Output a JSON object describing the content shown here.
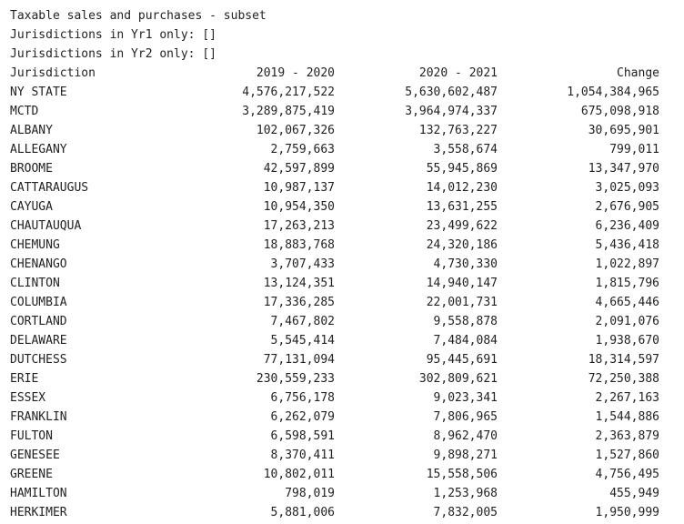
{
  "output": {
    "title": "Taxable sales and purchases - subset",
    "yr1_only": "Jurisdictions in Yr1 only: []",
    "yr2_only": "Jurisdictions in Yr2 only: []"
  },
  "table": {
    "columns": [
      "Jurisdiction",
      "2019 - 2020",
      "2020 - 2021",
      "Change"
    ],
    "rows": [
      [
        "NY STATE",
        "4,576,217,522",
        "5,630,602,487",
        "1,054,384,965"
      ],
      [
        "MCTD",
        "3,289,875,419",
        "3,964,974,337",
        "675,098,918"
      ],
      [
        "ALBANY",
        "102,067,326",
        "132,763,227",
        "30,695,901"
      ],
      [
        "ALLEGANY",
        "2,759,663",
        "3,558,674",
        "799,011"
      ],
      [
        "BROOME",
        "42,597,899",
        "55,945,869",
        "13,347,970"
      ],
      [
        "CATTARAUGUS",
        "10,987,137",
        "14,012,230",
        "3,025,093"
      ],
      [
        "CAYUGA",
        "10,954,350",
        "13,631,255",
        "2,676,905"
      ],
      [
        "CHAUTAUQUA",
        "17,263,213",
        "23,499,622",
        "6,236,409"
      ],
      [
        "CHEMUNG",
        "18,883,768",
        "24,320,186",
        "5,436,418"
      ],
      [
        "CHENANGO",
        "3,707,433",
        "4,730,330",
        "1,022,897"
      ],
      [
        "CLINTON",
        "13,124,351",
        "14,940,147",
        "1,815,796"
      ],
      [
        "COLUMBIA",
        "17,336,285",
        "22,001,731",
        "4,665,446"
      ],
      [
        "CORTLAND",
        "7,467,802",
        "9,558,878",
        "2,091,076"
      ],
      [
        "DELAWARE",
        "5,545,414",
        "7,484,084",
        "1,938,670"
      ],
      [
        "DUTCHESS",
        "77,131,094",
        "95,445,691",
        "18,314,597"
      ],
      [
        "ERIE",
        "230,559,233",
        "302,809,621",
        "72,250,388"
      ],
      [
        "ESSEX",
        "6,756,178",
        "9,023,341",
        "2,267,163"
      ],
      [
        "FRANKLIN",
        "6,262,079",
        "7,806,965",
        "1,544,886"
      ],
      [
        "FULTON",
        "6,598,591",
        "8,962,470",
        "2,363,879"
      ],
      [
        "GENESEE",
        "8,370,411",
        "9,898,271",
        "1,527,860"
      ],
      [
        "GREENE",
        "10,802,011",
        "15,558,506",
        "4,756,495"
      ],
      [
        "HAMILTON",
        "798,019",
        "1,253,968",
        "455,949"
      ],
      [
        "HERKIMER",
        "5,881,006",
        "7,832,005",
        "1,950,999"
      ]
    ]
  }
}
